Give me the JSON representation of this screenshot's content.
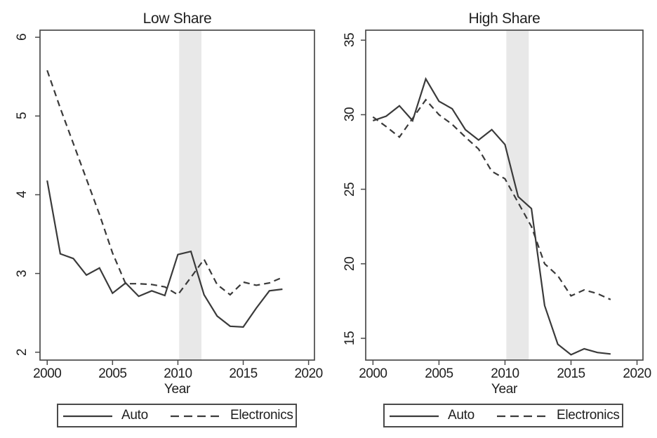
{
  "figure": {
    "background": "#ffffff",
    "panel_count": 2
  },
  "colors": {
    "line": "#3a3a3a",
    "band": "#e8e8e8",
    "border": "#4a4a4a",
    "text": "#1e1e1e",
    "background": "#ffffff"
  },
  "chart_data": [
    {
      "type": "line",
      "title": "Low Share",
      "xlabel": "Year",
      "ylabel": "",
      "x": [
        2000,
        2001,
        2002,
        2003,
        2004,
        2005,
        2006,
        2007,
        2008,
        2009,
        2010,
        2011,
        2012,
        2013,
        2014,
        2015,
        2016,
        2017,
        2018
      ],
      "series": [
        {
          "name": "Auto",
          "line_style": "solid",
          "values": [
            4.18,
            3.25,
            3.19,
            2.98,
            3.07,
            2.75,
            2.88,
            2.71,
            2.78,
            2.72,
            3.24,
            3.28,
            2.73,
            2.46,
            2.33,
            2.32,
            2.56,
            2.78,
            2.8
          ]
        },
        {
          "name": "Electronics",
          "line_style": "dashed",
          "values": [
            5.58,
            5.1,
            4.65,
            4.2,
            3.75,
            3.26,
            2.87,
            2.87,
            2.86,
            2.83,
            2.73,
            2.95,
            3.18,
            2.86,
            2.73,
            2.89,
            2.85,
            2.88,
            2.95
          ]
        }
      ],
      "xlim": [
        1999.45,
        2020.45
      ],
      "ylim": [
        1.9,
        6.09
      ],
      "x_ticks": [
        2000,
        2005,
        2010,
        2015,
        2020
      ],
      "y_ticks": [
        2,
        3,
        4,
        5,
        6
      ],
      "shaded_span": {
        "x_start": 2010.1,
        "x_end": 2011.8
      },
      "grid": false,
      "legend_position": "bottom"
    },
    {
      "type": "line",
      "title": "High Share",
      "xlabel": "Year",
      "ylabel": "",
      "x": [
        2000,
        2001,
        2002,
        2003,
        2004,
        2005,
        2006,
        2007,
        2008,
        2009,
        2010,
        2011,
        2012,
        2013,
        2014,
        2015,
        2016,
        2017,
        2018
      ],
      "series": [
        {
          "name": "Auto",
          "line_style": "solid",
          "values": [
            29.6,
            29.9,
            30.6,
            29.6,
            32.4,
            30.9,
            30.4,
            29.0,
            28.3,
            29.0,
            28.0,
            24.5,
            23.7,
            17.2,
            14.6,
            13.9,
            14.3,
            14.05,
            13.95
          ]
        },
        {
          "name": "Electronics",
          "line_style": "dashed",
          "values": [
            29.85,
            29.2,
            28.5,
            29.75,
            31.0,
            30.0,
            29.35,
            28.5,
            27.7,
            26.2,
            25.7,
            24.1,
            22.5,
            20.0,
            19.2,
            17.85,
            18.25,
            18.0,
            17.6
          ]
        }
      ],
      "xlim": [
        1999.45,
        2020.45
      ],
      "ylim": [
        13.54,
        35.67
      ],
      "x_ticks": [
        2000,
        2005,
        2010,
        2015,
        2020
      ],
      "y_ticks": [
        15,
        20,
        25,
        30,
        35
      ],
      "shaded_span": {
        "x_start": 2010.1,
        "x_end": 2011.8
      },
      "grid": false,
      "legend_position": "bottom"
    }
  ]
}
